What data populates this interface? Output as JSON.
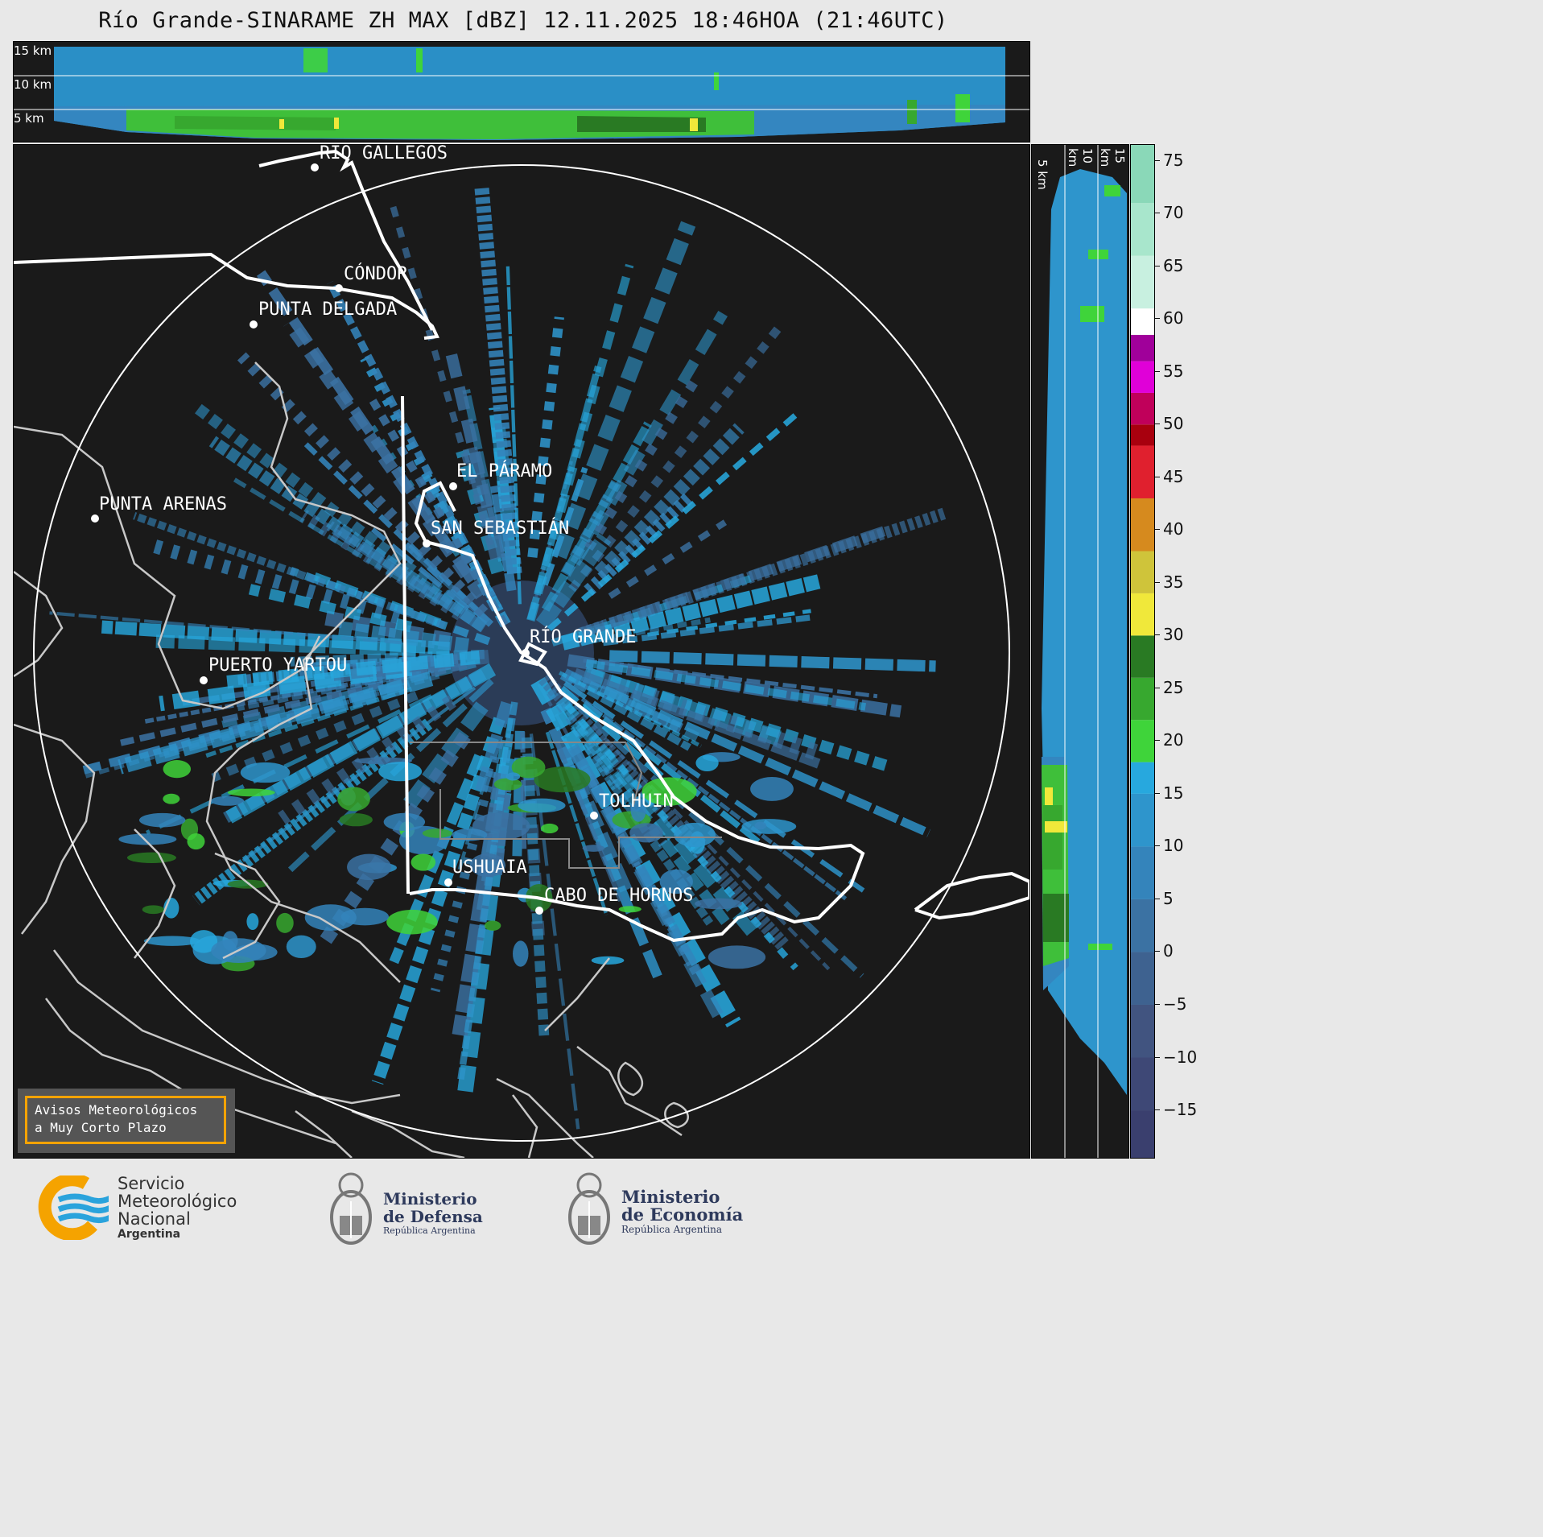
{
  "title": "Río Grande-SINARAME ZH MAX [dBZ] 12.11.2025 18:46HOA (21:46UTC)",
  "altitude_labels": [
    "15 km",
    "10 km",
    "5 km"
  ],
  "colorbar": {
    "ticks": [
      "75",
      "70",
      "65",
      "60",
      "55",
      "50",
      "45",
      "40",
      "35",
      "30",
      "25",
      "20",
      "15",
      "10",
      "5",
      "0",
      "−5",
      "−10",
      "−15"
    ],
    "range": [
      -19.5,
      76.5
    ],
    "bands": [
      {
        "from": -19.5,
        "to": -15,
        "color": "#3a3f6e"
      },
      {
        "from": -15,
        "to": -10,
        "color": "#3e4876"
      },
      {
        "from": -10,
        "to": -5,
        "color": "#415480"
      },
      {
        "from": -5,
        "to": 0,
        "color": "#3e6290"
      },
      {
        "from": 0,
        "to": 5,
        "color": "#3b72a3"
      },
      {
        "from": 5,
        "to": 10,
        "color": "#3484bb"
      },
      {
        "from": 10,
        "to": 15,
        "color": "#2e95cc"
      },
      {
        "from": 15,
        "to": 18,
        "color": "#27a8de"
      },
      {
        "from": 18,
        "to": 22,
        "color": "#3fd43a"
      },
      {
        "from": 22,
        "to": 26,
        "color": "#37a82f"
      },
      {
        "from": 26,
        "to": 30,
        "color": "#297a23"
      },
      {
        "from": 30,
        "to": 34,
        "color": "#f0e83a"
      },
      {
        "from": 34,
        "to": 38,
        "color": "#cfc43a"
      },
      {
        "from": 38,
        "to": 43,
        "color": "#d68a1e"
      },
      {
        "from": 43,
        "to": 48,
        "color": "#e0202e"
      },
      {
        "from": 48,
        "to": 50,
        "color": "#a8000e"
      },
      {
        "from": 50,
        "to": 53,
        "color": "#c0005a"
      },
      {
        "from": 53,
        "to": 56,
        "color": "#e000d8"
      },
      {
        "from": 56,
        "to": 58.5,
        "color": "#a0009a"
      },
      {
        "from": 58.5,
        "to": 61,
        "color": "#ffffff"
      },
      {
        "from": 61,
        "to": 66,
        "color": "#c8f0e0"
      },
      {
        "from": 66,
        "to": 71,
        "color": "#a8e6cc"
      },
      {
        "from": 71,
        "to": 76.5,
        "color": "#8ad8b8"
      }
    ]
  },
  "cities": [
    {
      "name": "RÍO GALLEGOS"
    },
    {
      "name": "CÓNDOR"
    },
    {
      "name": "PUNTA DELGADA"
    },
    {
      "name": "EL PÁRAMO"
    },
    {
      "name": "PUNTA ARENAS"
    },
    {
      "name": "SAN SEBASTIÁN"
    },
    {
      "name": "RÍO GRANDE"
    },
    {
      "name": "PUERTO YARTOU"
    },
    {
      "name": "TOLHUIN"
    },
    {
      "name": "USHUAIA"
    },
    {
      "name": "CABO DE HORNOS"
    }
  ],
  "avisos": {
    "line1": "Avisos Meteorológicos",
    "line2": "a Muy Corto Plazo"
  },
  "logos": {
    "smn": {
      "line1": "Servicio",
      "line2": "Meteorológico",
      "line3": "Nacional",
      "line4": "Argentina"
    },
    "defensa": {
      "line1": "Ministerio",
      "line2": "de Defensa",
      "line3": "República Argentina"
    },
    "economia": {
      "line1": "Ministerio",
      "line2": "de Economía",
      "line3": "República Argentina"
    }
  },
  "colors": {
    "background": "#1a1a1a",
    "accent_orange": "#f5a300",
    "smn_blue": "#2aa3dc"
  }
}
